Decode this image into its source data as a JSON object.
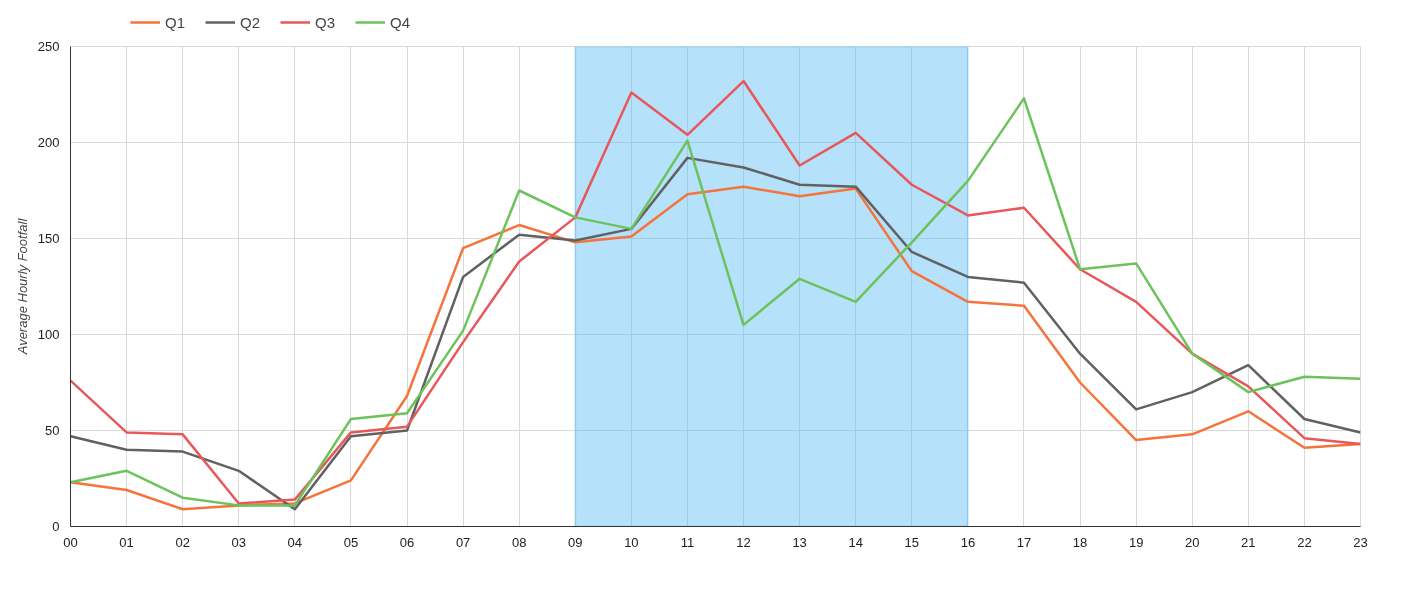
{
  "chart_data": {
    "type": "line",
    "ylabel": "Average Hourly Footfall",
    "categories": [
      "00",
      "01",
      "02",
      "03",
      "04",
      "05",
      "06",
      "07",
      "08",
      "09",
      "10",
      "11",
      "12",
      "13",
      "14",
      "15",
      "16",
      "17",
      "18",
      "19",
      "20",
      "21",
      "22",
      "23"
    ],
    "series": [
      {
        "name": "Q1",
        "color": "#f4743b",
        "values": [
          23,
          19,
          9,
          11,
          12,
          24,
          68,
          145,
          157,
          148,
          151,
          173,
          177,
          172,
          176,
          133,
          117,
          115,
          75,
          45,
          48,
          60,
          41,
          43
        ]
      },
      {
        "name": "Q2",
        "color": "#616161",
        "values": [
          47,
          40,
          39,
          29,
          9,
          47,
          50,
          130,
          152,
          149,
          155,
          192,
          187,
          178,
          177,
          143,
          130,
          127,
          90,
          61,
          70,
          84,
          56,
          49
        ]
      },
      {
        "name": "Q3",
        "color": "#e8585a",
        "values": [
          76,
          49,
          48,
          12,
          14,
          49,
          52,
          96,
          138,
          161,
          226,
          204,
          232,
          188,
          205,
          178,
          162,
          166,
          134,
          117,
          90,
          73,
          46,
          43
        ]
      },
      {
        "name": "Q4",
        "color": "#6cc35b",
        "values": [
          23,
          29,
          15,
          11,
          11,
          56,
          59,
          102,
          175,
          161,
          155,
          201,
          105,
          129,
          117,
          148,
          180,
          223,
          134,
          137,
          90,
          70,
          78,
          77
        ]
      }
    ],
    "ylim": [
      0,
      250
    ],
    "yticks": [
      0,
      50,
      100,
      150,
      200,
      250
    ],
    "bands": [
      {
        "axis": "x",
        "from": "09",
        "to": "16",
        "color": "#5bbcf5"
      }
    ],
    "grid": true,
    "legend": "top left",
    "marker": "none",
    "line_style": "solid"
  }
}
